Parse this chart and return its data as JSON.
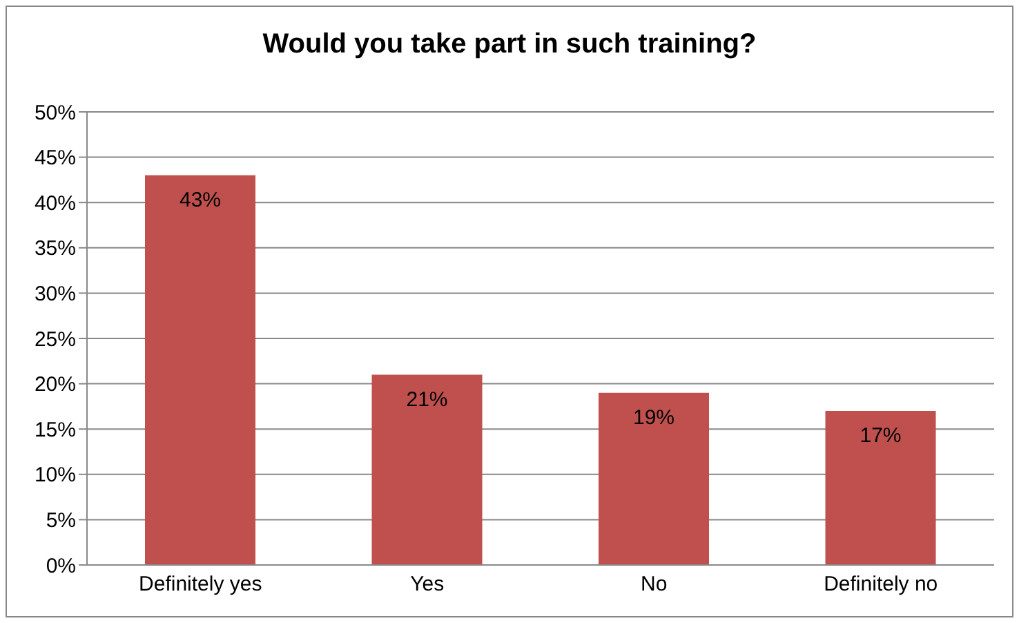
{
  "chart_data": {
    "type": "bar",
    "title": "Would you take part in such training?",
    "categories": [
      "Definitely yes",
      "Yes",
      "No",
      "Definitely no"
    ],
    "values": [
      43,
      21,
      19,
      17
    ],
    "value_labels": [
      "43%",
      "21%",
      "19%",
      "17%"
    ],
    "color": "#c0504d",
    "ylim": [
      0,
      50
    ],
    "yticks": [
      {
        "value": 0,
        "label": "0%"
      },
      {
        "value": 5,
        "label": "5%"
      },
      {
        "value": 10,
        "label": "10%"
      },
      {
        "value": 15,
        "label": "15%"
      },
      {
        "value": 20,
        "label": "20%"
      },
      {
        "value": 25,
        "label": "25%"
      },
      {
        "value": 30,
        "label": "30%"
      },
      {
        "value": 35,
        "label": "35%"
      },
      {
        "value": 40,
        "label": "40%"
      },
      {
        "value": 45,
        "label": "45%"
      },
      {
        "value": 50,
        "label": "50%"
      }
    ],
    "grid": "y",
    "legend": false
  }
}
